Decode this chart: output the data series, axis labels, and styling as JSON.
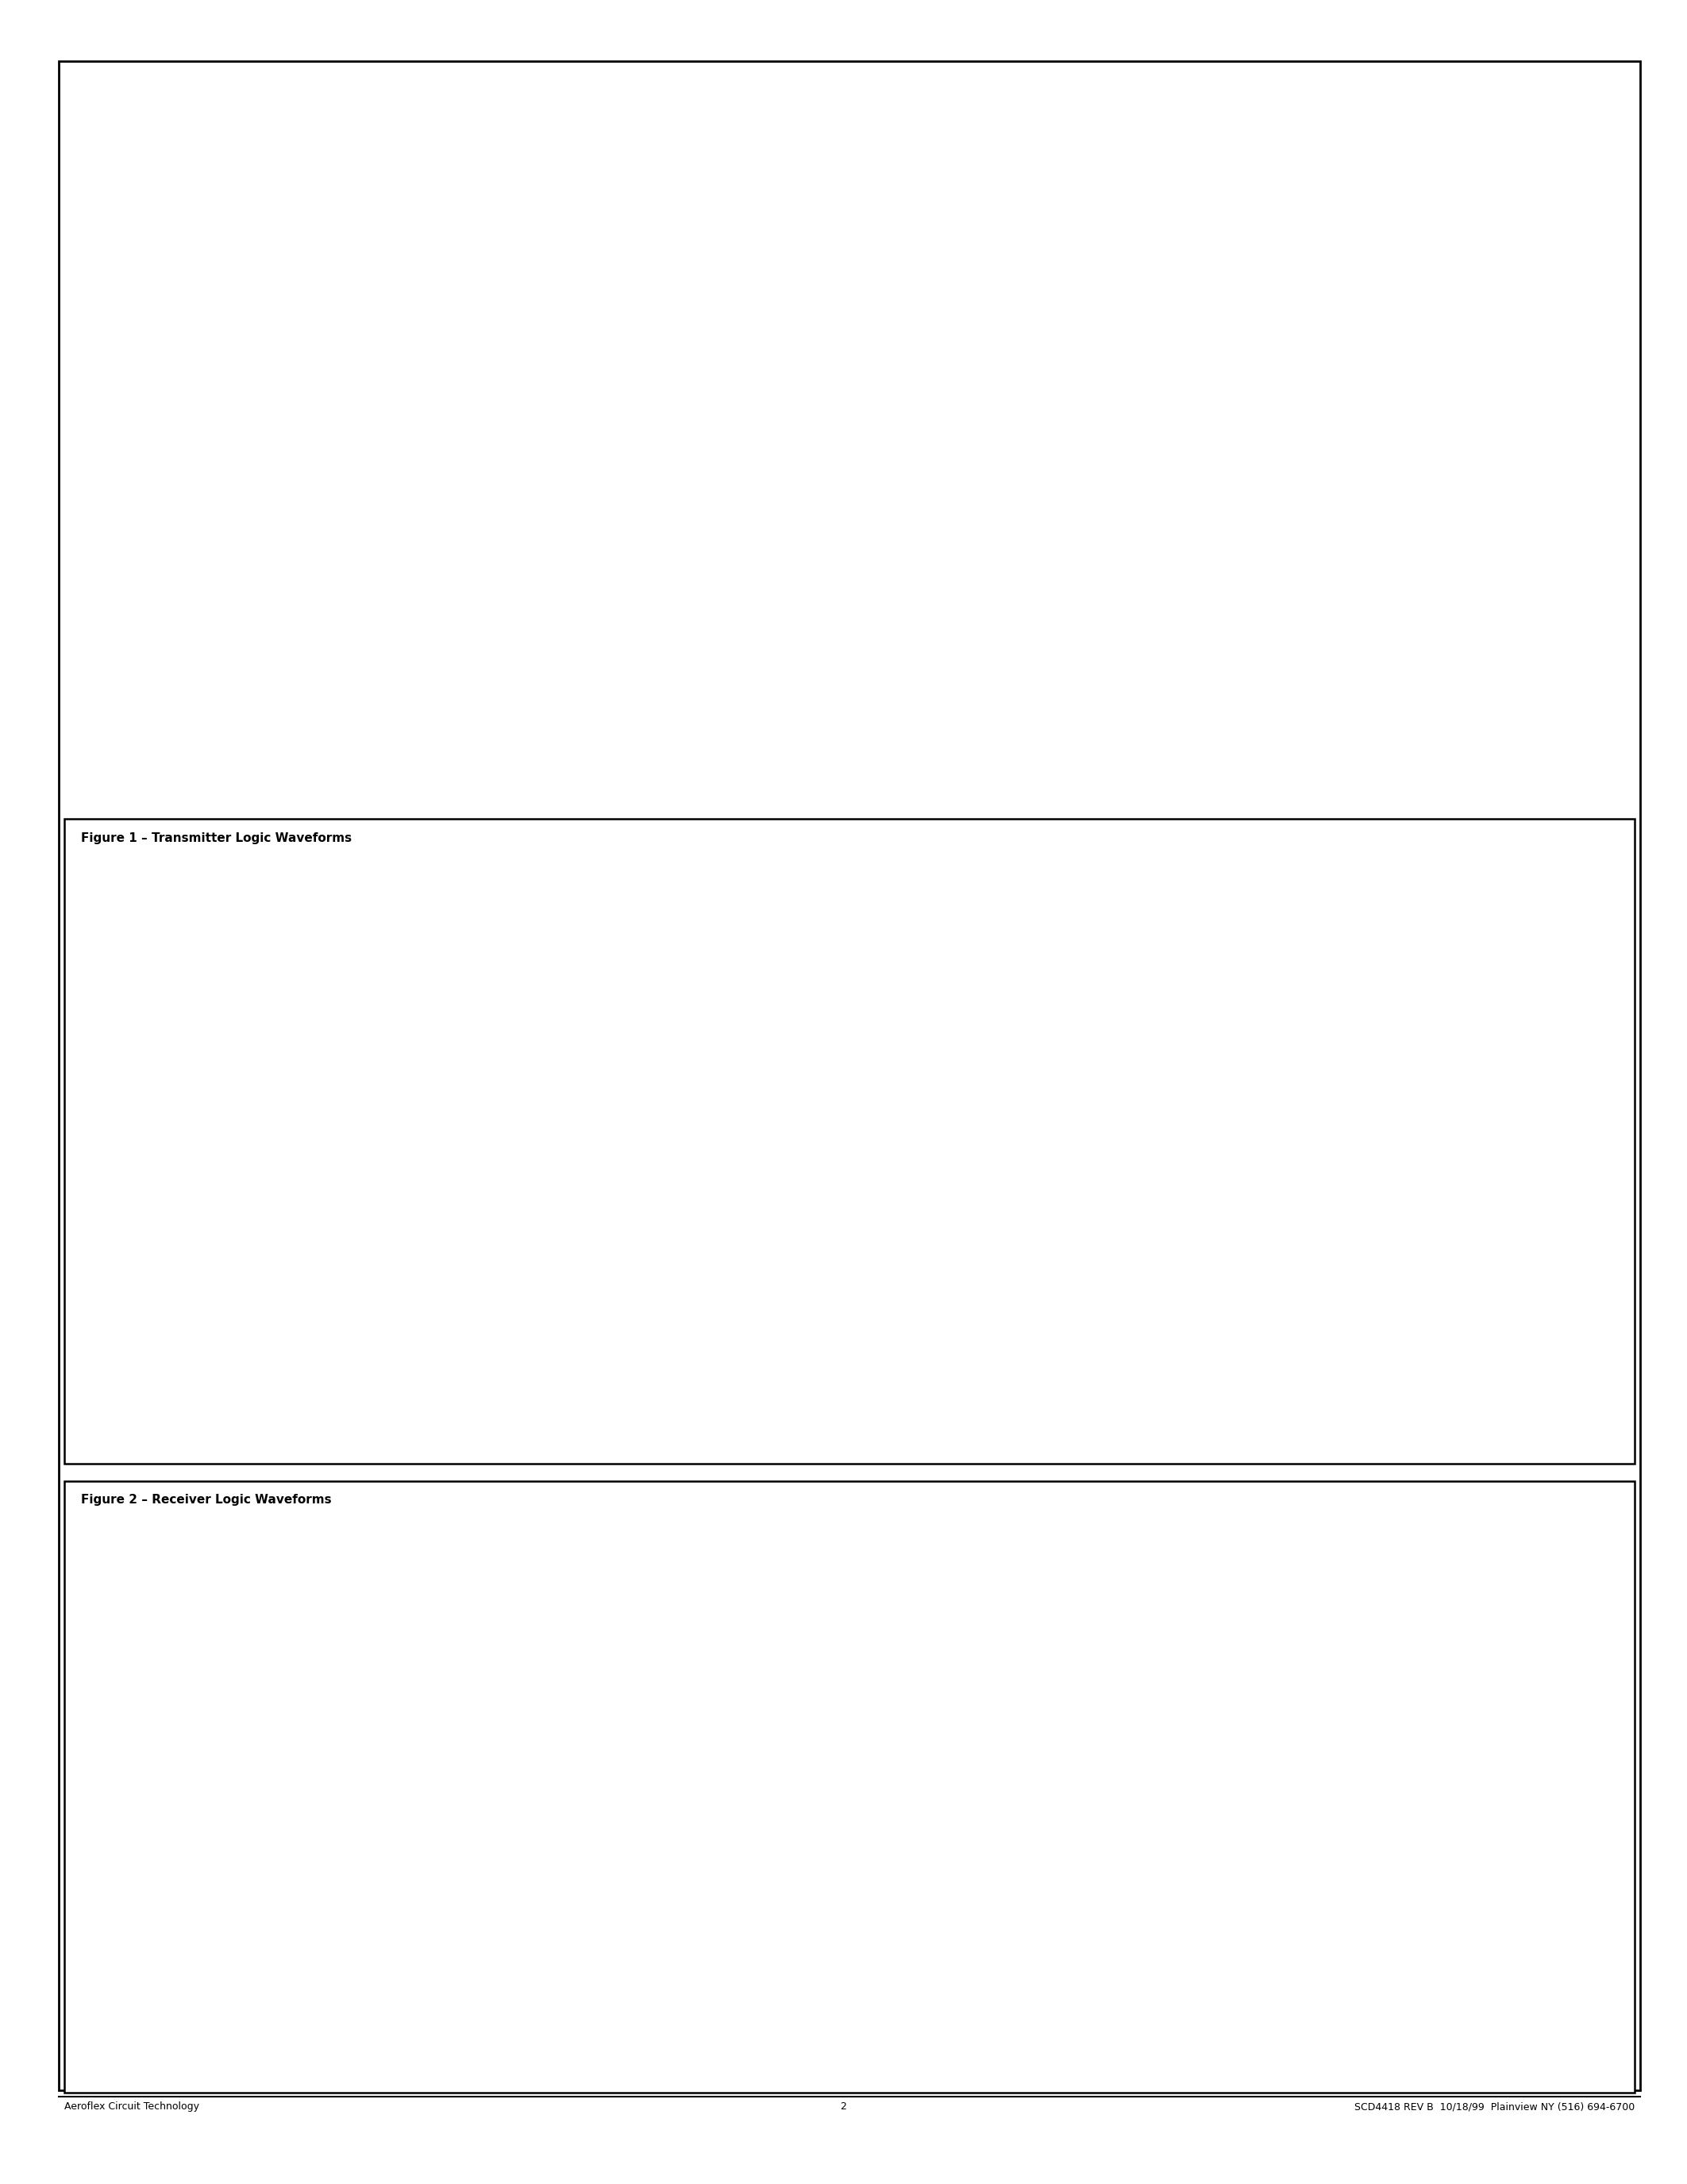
{
  "page_bg": "#ffffff",
  "border_color": "#000000",
  "text_color": "#000000",
  "fig1_title": "Figure 1 – Transmitter Logic Waveforms",
  "fig2_title": "Figure 2 – Receiver Logic Waveforms",
  "footer_left": "Aeroflex Circuit Technology",
  "footer_center": "2",
  "footer_right": "SCD4418 REV B  10/18/99  Plainview NY (516) 694-6700"
}
